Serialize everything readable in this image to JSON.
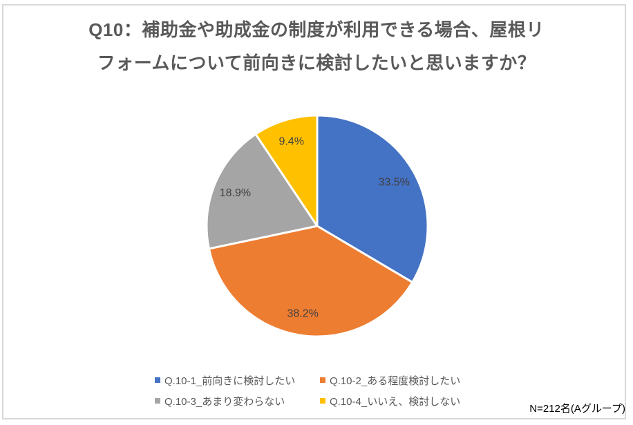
{
  "title": {
    "line1": "Q10：補助金や助成金の制度が利用できる場合、屋根リ",
    "line2": "フォームについて前向きに検討したいと思いますか？"
  },
  "footnote": "N=212名(Aグループ)",
  "chart_data": {
    "type": "pie",
    "title": "Q10：補助金や助成金の制度が利用できる場合、屋根リフォームについて前向きに検討したいと思いますか？",
    "unit": "%",
    "start_angle_deg": 0,
    "direction": "clockwise",
    "legend_position": "bottom",
    "slices": [
      {
        "label": "Q.10-1_前向きに検討したい",
        "value": 33.5,
        "color": "#4472C4"
      },
      {
        "label": "Q.10-2_ある程度検討したい",
        "value": 38.2,
        "color": "#ED7D31"
      },
      {
        "label": "Q.10-3_あまり変わらない",
        "value": 18.9,
        "color": "#A5A5A5"
      },
      {
        "label": "Q.10-4_いいえ、検討しない",
        "value": 9.4,
        "color": "#FFC000"
      }
    ],
    "data_label_format": "0.0%",
    "sample_note": "N=212名(Aグループ)"
  }
}
